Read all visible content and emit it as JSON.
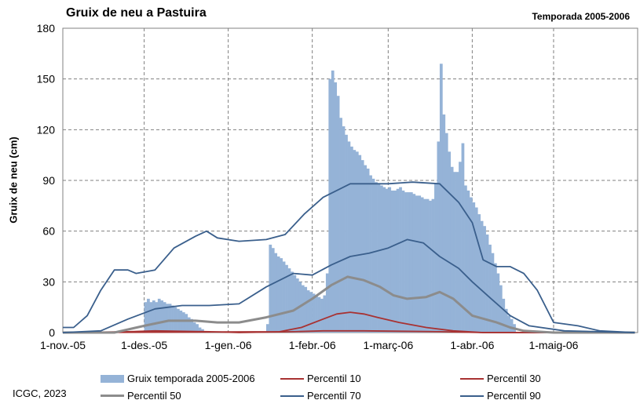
{
  "title": "Gruix de neu a Pastuira",
  "season": "Temporada 2005-2006",
  "footer": "ICGC, 2023",
  "colors": {
    "bars": "#95b3d7",
    "p10": "#a83232",
    "p30": "#a83232",
    "p50": "#8c8c8c",
    "p70": "#3a5f8c",
    "p90": "#3a5f8c",
    "grid": "#808080"
  },
  "chart_data": {
    "type": "bar",
    "ylabel": "Gruix de neu (cm)",
    "ylim": [
      0,
      180
    ],
    "yticks": [
      0,
      30,
      60,
      90,
      120,
      150,
      180
    ],
    "x_range": [
      "2005-11-01",
      "2006-05-31"
    ],
    "xticks": [
      {
        "date": "2005-11-01",
        "label": "1-nov.-05"
      },
      {
        "date": "2005-12-01",
        "label": "1-des.-05"
      },
      {
        "date": "2006-01-01",
        "label": "1-gen.-06"
      },
      {
        "date": "2006-02-01",
        "label": "1-febr.-06"
      },
      {
        "date": "2006-03-01",
        "label": "1-març-06"
      },
      {
        "date": "2006-04-01",
        "label": "1-abr.-06"
      },
      {
        "date": "2006-05-01",
        "label": "1-maig-06"
      }
    ],
    "grid": "vertical dashed at month starts, horizontal dashed at y ticks",
    "legend": [
      {
        "key": "bars",
        "label": "Gruix temporada 2005-2006",
        "kind": "bar"
      },
      {
        "key": "p10",
        "label": "Percentil 10",
        "kind": "line"
      },
      {
        "key": "p30",
        "label": "Percentil 30",
        "kind": "line"
      },
      {
        "key": "p50",
        "label": "Percentil 50",
        "kind": "thickline"
      },
      {
        "key": "p70",
        "label": "Percentil 70",
        "kind": "line"
      },
      {
        "key": "p90",
        "label": "Percentil 90",
        "kind": "line"
      }
    ],
    "bars": {
      "name": "Gruix temporada 2005-2006",
      "start_date": "2005-11-01",
      "values": [
        0,
        0,
        0,
        0,
        0,
        0,
        0,
        0,
        0,
        0,
        0,
        0,
        0,
        0,
        0,
        0,
        0,
        0,
        0,
        0,
        0,
        0,
        0,
        0,
        0,
        0,
        0,
        0,
        0,
        0,
        18,
        20,
        18,
        19,
        18,
        20,
        19,
        18,
        17,
        17,
        16,
        15,
        14,
        13,
        12,
        11,
        9,
        8,
        6,
        5,
        3,
        2,
        0,
        0,
        0,
        0,
        0,
        0,
        0,
        0,
        0,
        0,
        0,
        0,
        0,
        0,
        0,
        0,
        0,
        0,
        0,
        0,
        0,
        0,
        0,
        5,
        52,
        50,
        47,
        45,
        44,
        42,
        40,
        38,
        36,
        34,
        32,
        30,
        28,
        27,
        25,
        24,
        23,
        22,
        21,
        20,
        22,
        35,
        150,
        155,
        148,
        140,
        127,
        122,
        117,
        113,
        110,
        108,
        107,
        105,
        102,
        99,
        97,
        93,
        91,
        89,
        88,
        87,
        86,
        85,
        86,
        84,
        84,
        85,
        86,
        84,
        83,
        83,
        83,
        82,
        81,
        81,
        80,
        79,
        79,
        78,
        79,
        88,
        113,
        159,
        129,
        118,
        107,
        98,
        95,
        95,
        101,
        112,
        87,
        84,
        80,
        77,
        74,
        70,
        66,
        63,
        58,
        52,
        47,
        41,
        35,
        28,
        20,
        14,
        10,
        8,
        5,
        0,
        0,
        0,
        0,
        0,
        0,
        0,
        0,
        0,
        0,
        0,
        0,
        0,
        0,
        0,
        0,
        0,
        0,
        0,
        0,
        0,
        0,
        0,
        0,
        0,
        0,
        0,
        0,
        0,
        0,
        0,
        0,
        0,
        0,
        0,
        0,
        0,
        0,
        0,
        0,
        0,
        0,
        0,
        0,
        0,
        0,
        0,
        0
      ]
    },
    "series": [
      {
        "key": "p10",
        "name": "Percentil 10",
        "points": [
          [
            "2005-11-01",
            0
          ],
          [
            "2006-01-20",
            0.5
          ],
          [
            "2006-01-28",
            3
          ],
          [
            "2006-02-05",
            8
          ],
          [
            "2006-02-10",
            11
          ],
          [
            "2006-02-15",
            12
          ],
          [
            "2006-02-20",
            11
          ],
          [
            "2006-02-25",
            9
          ],
          [
            "2006-03-05",
            6
          ],
          [
            "2006-03-15",
            3
          ],
          [
            "2006-03-25",
            1
          ],
          [
            "2006-04-05",
            0
          ],
          [
            "2006-05-31",
            0
          ]
        ]
      },
      {
        "key": "p30",
        "name": "Percentil 30",
        "points": [
          [
            "2005-11-01",
            0
          ],
          [
            "2005-11-25",
            0.5
          ],
          [
            "2005-12-05",
            1
          ],
          [
            "2005-12-25",
            0.5
          ],
          [
            "2006-01-05",
            0
          ],
          [
            "2006-01-25",
            0.5
          ],
          [
            "2006-02-05",
            1
          ],
          [
            "2006-02-20",
            1
          ],
          [
            "2006-03-20",
            0.5
          ],
          [
            "2006-04-05",
            0
          ],
          [
            "2006-05-31",
            0
          ]
        ]
      },
      {
        "key": "p50",
        "name": "Percentil 50",
        "points": [
          [
            "2005-11-01",
            0
          ],
          [
            "2005-11-20",
            0
          ],
          [
            "2005-12-01",
            4
          ],
          [
            "2005-12-10",
            7
          ],
          [
            "2005-12-20",
            7
          ],
          [
            "2005-12-28",
            6
          ],
          [
            "2006-01-05",
            6
          ],
          [
            "2006-01-15",
            9
          ],
          [
            "2006-01-25",
            13
          ],
          [
            "2006-02-01",
            20
          ],
          [
            "2006-02-08",
            28
          ],
          [
            "2006-02-14",
            33
          ],
          [
            "2006-02-20",
            31
          ],
          [
            "2006-02-26",
            27
          ],
          [
            "2006-03-03",
            22
          ],
          [
            "2006-03-08",
            20
          ],
          [
            "2006-03-15",
            21
          ],
          [
            "2006-03-20",
            24
          ],
          [
            "2006-03-25",
            20
          ],
          [
            "2006-04-01",
            10
          ],
          [
            "2006-04-10",
            6
          ],
          [
            "2006-04-15",
            3
          ],
          [
            "2006-04-20",
            1
          ],
          [
            "2006-05-01",
            0
          ],
          [
            "2006-05-31",
            0
          ]
        ]
      },
      {
        "key": "p70",
        "name": "Percentil 70",
        "points": [
          [
            "2005-11-01",
            0
          ],
          [
            "2005-11-15",
            1
          ],
          [
            "2005-11-25",
            8
          ],
          [
            "2005-12-05",
            14
          ],
          [
            "2005-12-15",
            16
          ],
          [
            "2005-12-25",
            16
          ],
          [
            "2006-01-05",
            17
          ],
          [
            "2006-01-15",
            27
          ],
          [
            "2006-01-25",
            35
          ],
          [
            "2006-02-01",
            34
          ],
          [
            "2006-02-08",
            40
          ],
          [
            "2006-02-15",
            45
          ],
          [
            "2006-02-22",
            47
          ],
          [
            "2006-03-01",
            50
          ],
          [
            "2006-03-08",
            55
          ],
          [
            "2006-03-14",
            53
          ],
          [
            "2006-03-20",
            45
          ],
          [
            "2006-03-27",
            38
          ],
          [
            "2006-04-01",
            30
          ],
          [
            "2006-04-08",
            20
          ],
          [
            "2006-04-15",
            10
          ],
          [
            "2006-04-22",
            4
          ],
          [
            "2006-05-05",
            1
          ],
          [
            "2006-05-31",
            0
          ]
        ]
      },
      {
        "key": "p90",
        "name": "Percentil 90",
        "points": [
          [
            "2005-11-01",
            3
          ],
          [
            "2005-11-05",
            3
          ],
          [
            "2005-11-10",
            10
          ],
          [
            "2005-11-15",
            25
          ],
          [
            "2005-11-20",
            37
          ],
          [
            "2005-11-25",
            37
          ],
          [
            "2005-11-28",
            35
          ],
          [
            "2005-12-05",
            37
          ],
          [
            "2005-12-12",
            50
          ],
          [
            "2005-12-20",
            57
          ],
          [
            "2005-12-24",
            60
          ],
          [
            "2005-12-28",
            56
          ],
          [
            "2006-01-05",
            54
          ],
          [
            "2006-01-15",
            55
          ],
          [
            "2006-01-22",
            58
          ],
          [
            "2006-01-29",
            70
          ],
          [
            "2006-02-05",
            80
          ],
          [
            "2006-02-15",
            88
          ],
          [
            "2006-02-25",
            88
          ],
          [
            "2006-03-01",
            88
          ],
          [
            "2006-03-10",
            89
          ],
          [
            "2006-03-20",
            88
          ],
          [
            "2006-03-27",
            77
          ],
          [
            "2006-04-01",
            65
          ],
          [
            "2006-04-05",
            43
          ],
          [
            "2006-04-10",
            39
          ],
          [
            "2006-04-15",
            39
          ],
          [
            "2006-04-20",
            35
          ],
          [
            "2006-04-25",
            25
          ],
          [
            "2006-05-01",
            6
          ],
          [
            "2006-05-10",
            4
          ],
          [
            "2006-05-18",
            1
          ],
          [
            "2006-05-31",
            0
          ]
        ]
      }
    ]
  }
}
